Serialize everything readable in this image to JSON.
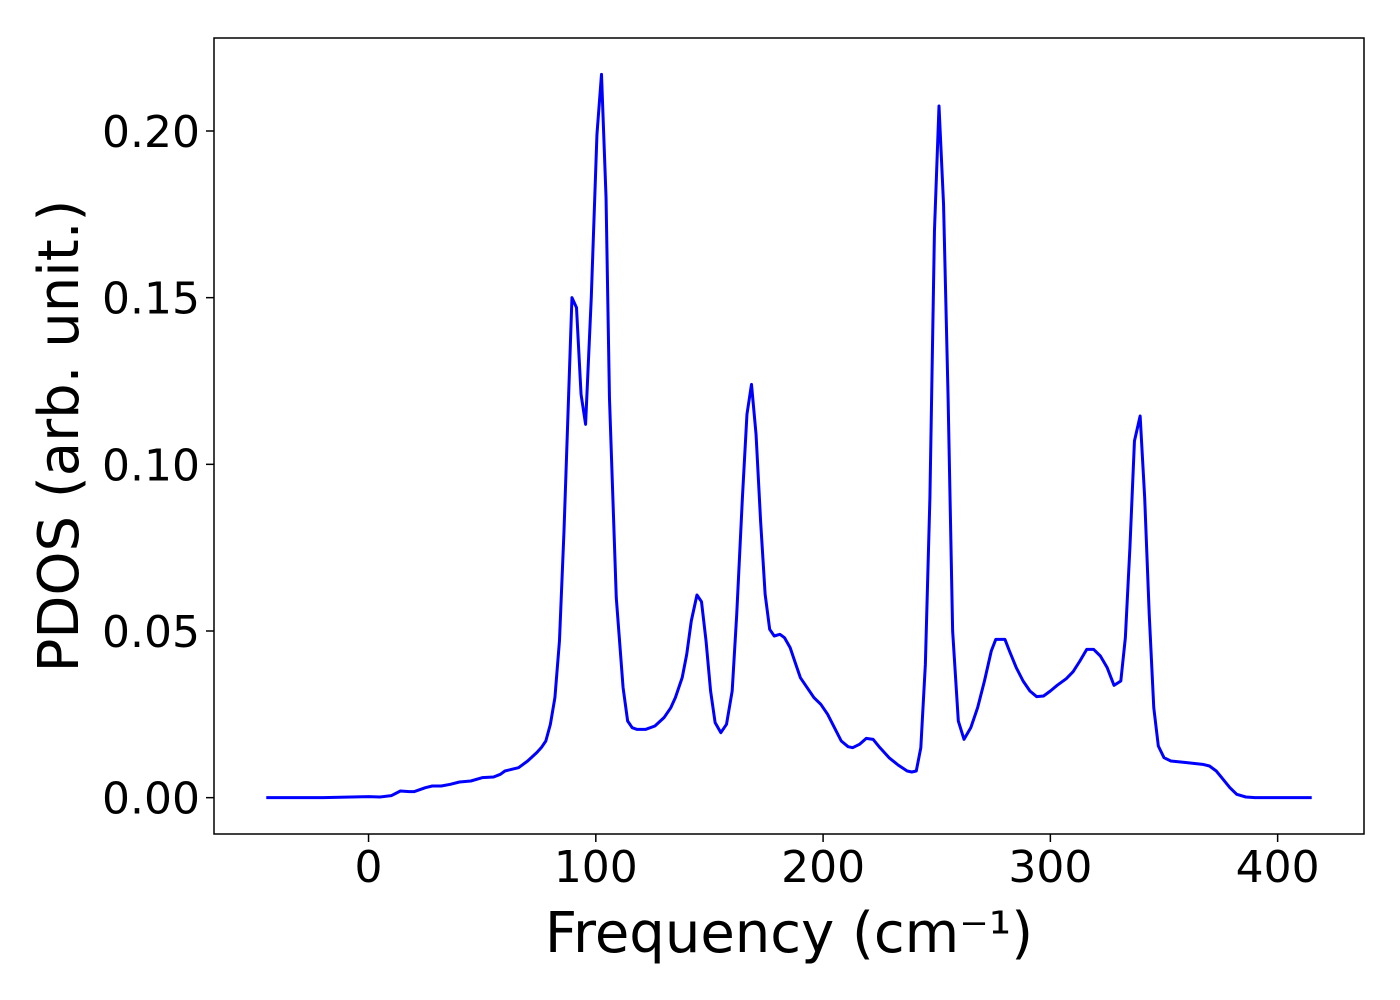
{
  "chart_data": {
    "type": "line",
    "xlabel": "Frequency (cm⁻¹)",
    "ylabel": "PDOS (arb. unit.)",
    "color": "#0000ff",
    "xlim": [
      -68,
      438
    ],
    "ylim": [
      -0.0109,
      0.2279
    ],
    "xticks": [
      0,
      100,
      200,
      300,
      400
    ],
    "yticks": [
      {
        "value": 0,
        "label": "0.00"
      },
      0.05,
      {
        "value": 0.1,
        "label": "0.10"
      },
      0.15,
      {
        "value": 0.2,
        "label": "0.20"
      }
    ],
    "x": [
      -45,
      -20,
      0,
      5,
      10,
      14,
      18,
      20,
      25,
      28,
      32,
      36,
      40,
      45,
      50,
      55,
      58,
      60,
      63,
      66,
      70,
      74,
      76,
      78,
      80,
      82,
      84,
      86,
      88,
      89.5,
      91.5,
      93.5,
      95.5,
      98,
      100.5,
      102.5,
      104.5,
      106,
      109,
      112,
      114,
      116,
      118,
      122,
      126,
      130,
      133,
      135,
      138,
      140,
      142,
      144.5,
      146.5,
      148.5,
      150.5,
      152.5,
      155,
      157.5,
      160,
      162,
      164.5,
      166.5,
      168.5,
      170.5,
      172.5,
      174.5,
      176.5,
      178.5,
      181,
      183,
      185.5,
      188,
      190,
      193,
      196,
      199,
      202,
      205,
      208,
      211,
      213,
      216,
      219,
      222,
      225,
      229,
      233,
      237,
      239,
      241,
      243,
      245,
      247,
      249,
      251,
      253,
      255,
      257,
      259.5,
      262,
      265,
      268,
      271,
      274,
      276,
      280,
      282,
      285,
      288,
      291,
      294,
      297,
      300,
      303,
      307,
      310,
      313,
      316,
      319,
      322,
      325,
      328,
      331,
      333,
      335,
      337,
      339.5,
      341.5,
      343.5,
      345.5,
      347.5,
      350,
      353,
      360,
      367,
      370,
      373,
      376,
      379,
      382,
      386,
      390,
      400,
      415
    ],
    "values": [
      0,
      0,
      0.0003,
      0.0002,
      0.0006,
      0.002,
      0.0018,
      0.0018,
      0.003,
      0.0035,
      0.0035,
      0.004,
      0.0047,
      0.005,
      0.006,
      0.0062,
      0.007,
      0.008,
      0.0085,
      0.009,
      0.011,
      0.0135,
      0.015,
      0.017,
      0.022,
      0.03,
      0.047,
      0.08,
      0.12,
      0.15,
      0.147,
      0.121,
      0.112,
      0.15,
      0.199,
      0.217,
      0.18,
      0.12,
      0.06,
      0.033,
      0.023,
      0.021,
      0.0205,
      0.0205,
      0.0215,
      0.024,
      0.027,
      0.03,
      0.036,
      0.043,
      0.053,
      0.0608,
      0.0588,
      0.047,
      0.032,
      0.0225,
      0.0195,
      0.022,
      0.032,
      0.055,
      0.09,
      0.115,
      0.124,
      0.109,
      0.083,
      0.061,
      0.0505,
      0.0485,
      0.049,
      0.048,
      0.045,
      0.04,
      0.036,
      0.033,
      0.03,
      0.028,
      0.025,
      0.021,
      0.017,
      0.0153,
      0.015,
      0.016,
      0.0178,
      0.0175,
      0.015,
      0.012,
      0.0098,
      0.008,
      0.0077,
      0.008,
      0.015,
      0.04,
      0.09,
      0.17,
      0.2075,
      0.178,
      0.12,
      0.05,
      0.023,
      0.0175,
      0.021,
      0.027,
      0.035,
      0.044,
      0.0475,
      0.0475,
      0.044,
      0.039,
      0.035,
      0.032,
      0.0303,
      0.0305,
      0.032,
      0.0337,
      0.0357,
      0.0378,
      0.041,
      0.0445,
      0.0445,
      0.0425,
      0.039,
      0.0337,
      0.035,
      0.048,
      0.075,
      0.107,
      0.1145,
      0.09,
      0.055,
      0.027,
      0.0155,
      0.012,
      0.011,
      0.0105,
      0.01,
      0.0095,
      0.008,
      0.0055,
      0.003,
      0.001,
      0.0002,
      0,
      0,
      0
    ]
  }
}
